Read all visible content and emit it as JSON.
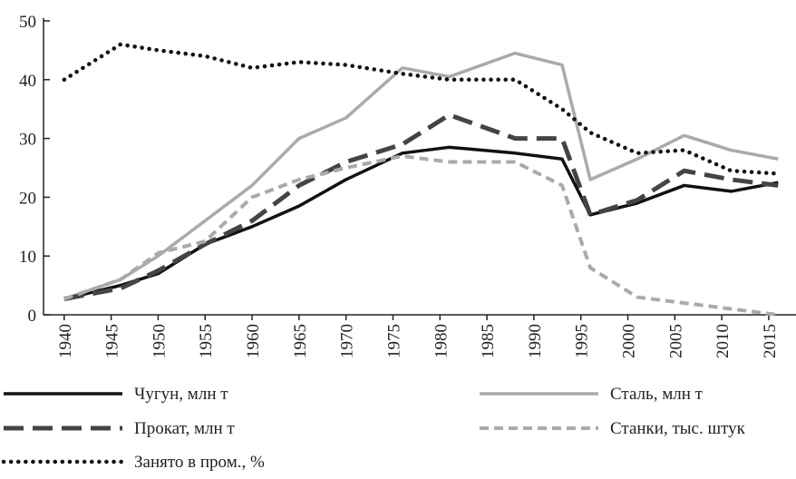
{
  "chart_data": {
    "type": "line",
    "x": [
      1940,
      1946,
      1950,
      1955,
      1960,
      1965,
      1970,
      1976,
      1981,
      1988,
      1993,
      1996,
      2001,
      2006,
      2011,
      2016
    ],
    "xlim": [
      1937.8,
      2017.9
    ],
    "xticks": [
      1940,
      1945,
      1950,
      1955,
      1960,
      1965,
      1970,
      1975,
      1980,
      1985,
      1990,
      1995,
      2000,
      2005,
      2010,
      2015
    ],
    "ylim": [
      0,
      50
    ],
    "yticks": [
      0,
      10,
      20,
      30,
      40,
      50
    ],
    "series": [
      {
        "name": "Чугун, млн т",
        "color": "#111111",
        "dash": "solid",
        "values": [
          2.7,
          5,
          7,
          12,
          15,
          18.5,
          23,
          27.5,
          28.5,
          27.5,
          26.5,
          17,
          19,
          22,
          21,
          22.5
        ]
      },
      {
        "name": "Сталь, млн т",
        "color": "#aaaaaa",
        "dash": "solid",
        "values": [
          2.7,
          6,
          10,
          16,
          22,
          30,
          33.5,
          42,
          40.5,
          44.5,
          42.5,
          23,
          26.5,
          30.5,
          28,
          26.5
        ]
      },
      {
        "name": "Прокат, млн т",
        "color": "#444444",
        "dash": "long",
        "values": [
          2.7,
          4.5,
          7.5,
          12,
          16,
          22,
          26,
          29,
          34,
          30,
          30,
          17,
          19.5,
          24.5,
          23,
          22
        ]
      },
      {
        "name": "Станки, тыс. штук",
        "color": "#aaaaaa",
        "dash": "short",
        "values": [
          2.7,
          6,
          10.5,
          12.5,
          20,
          23,
          25,
          27,
          26,
          26,
          22,
          8,
          3,
          2,
          1,
          0
        ]
      },
      {
        "name": "Занято в пром., %",
        "color": "#111111",
        "dash": "dot",
        "values": [
          40,
          46,
          45,
          44,
          42,
          43,
          42.5,
          41,
          40,
          40,
          35,
          31,
          27.5,
          28,
          24.5,
          24
        ]
      }
    ]
  }
}
